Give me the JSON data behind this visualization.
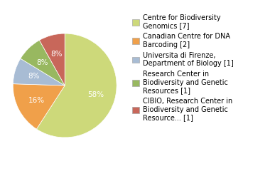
{
  "labels": [
    "Centre for Biodiversity\nGenomics [7]",
    "Canadian Centre for DNA\nBarcoding [2]",
    "Universita di Firenze,\nDepartment of Biology [1]",
    "Research Center in\nBiodiversity and Genetic\nResources [1]",
    "CIBIO, Research Center in\nBiodiversity and Genetic\nResource... [1]"
  ],
  "values": [
    58,
    16,
    8,
    8,
    8
  ],
  "colors": [
    "#cdd97a",
    "#f0a04a",
    "#a8bcd4",
    "#98b860",
    "#c8675a"
  ],
  "pct_labels": [
    "58%",
    "16%",
    "8%",
    "8%",
    "8%"
  ],
  "text_color": "white",
  "background_color": "#ffffff",
  "legend_fontsize": 7.0,
  "pct_fontsize": 7.5,
  "startangle": 90
}
